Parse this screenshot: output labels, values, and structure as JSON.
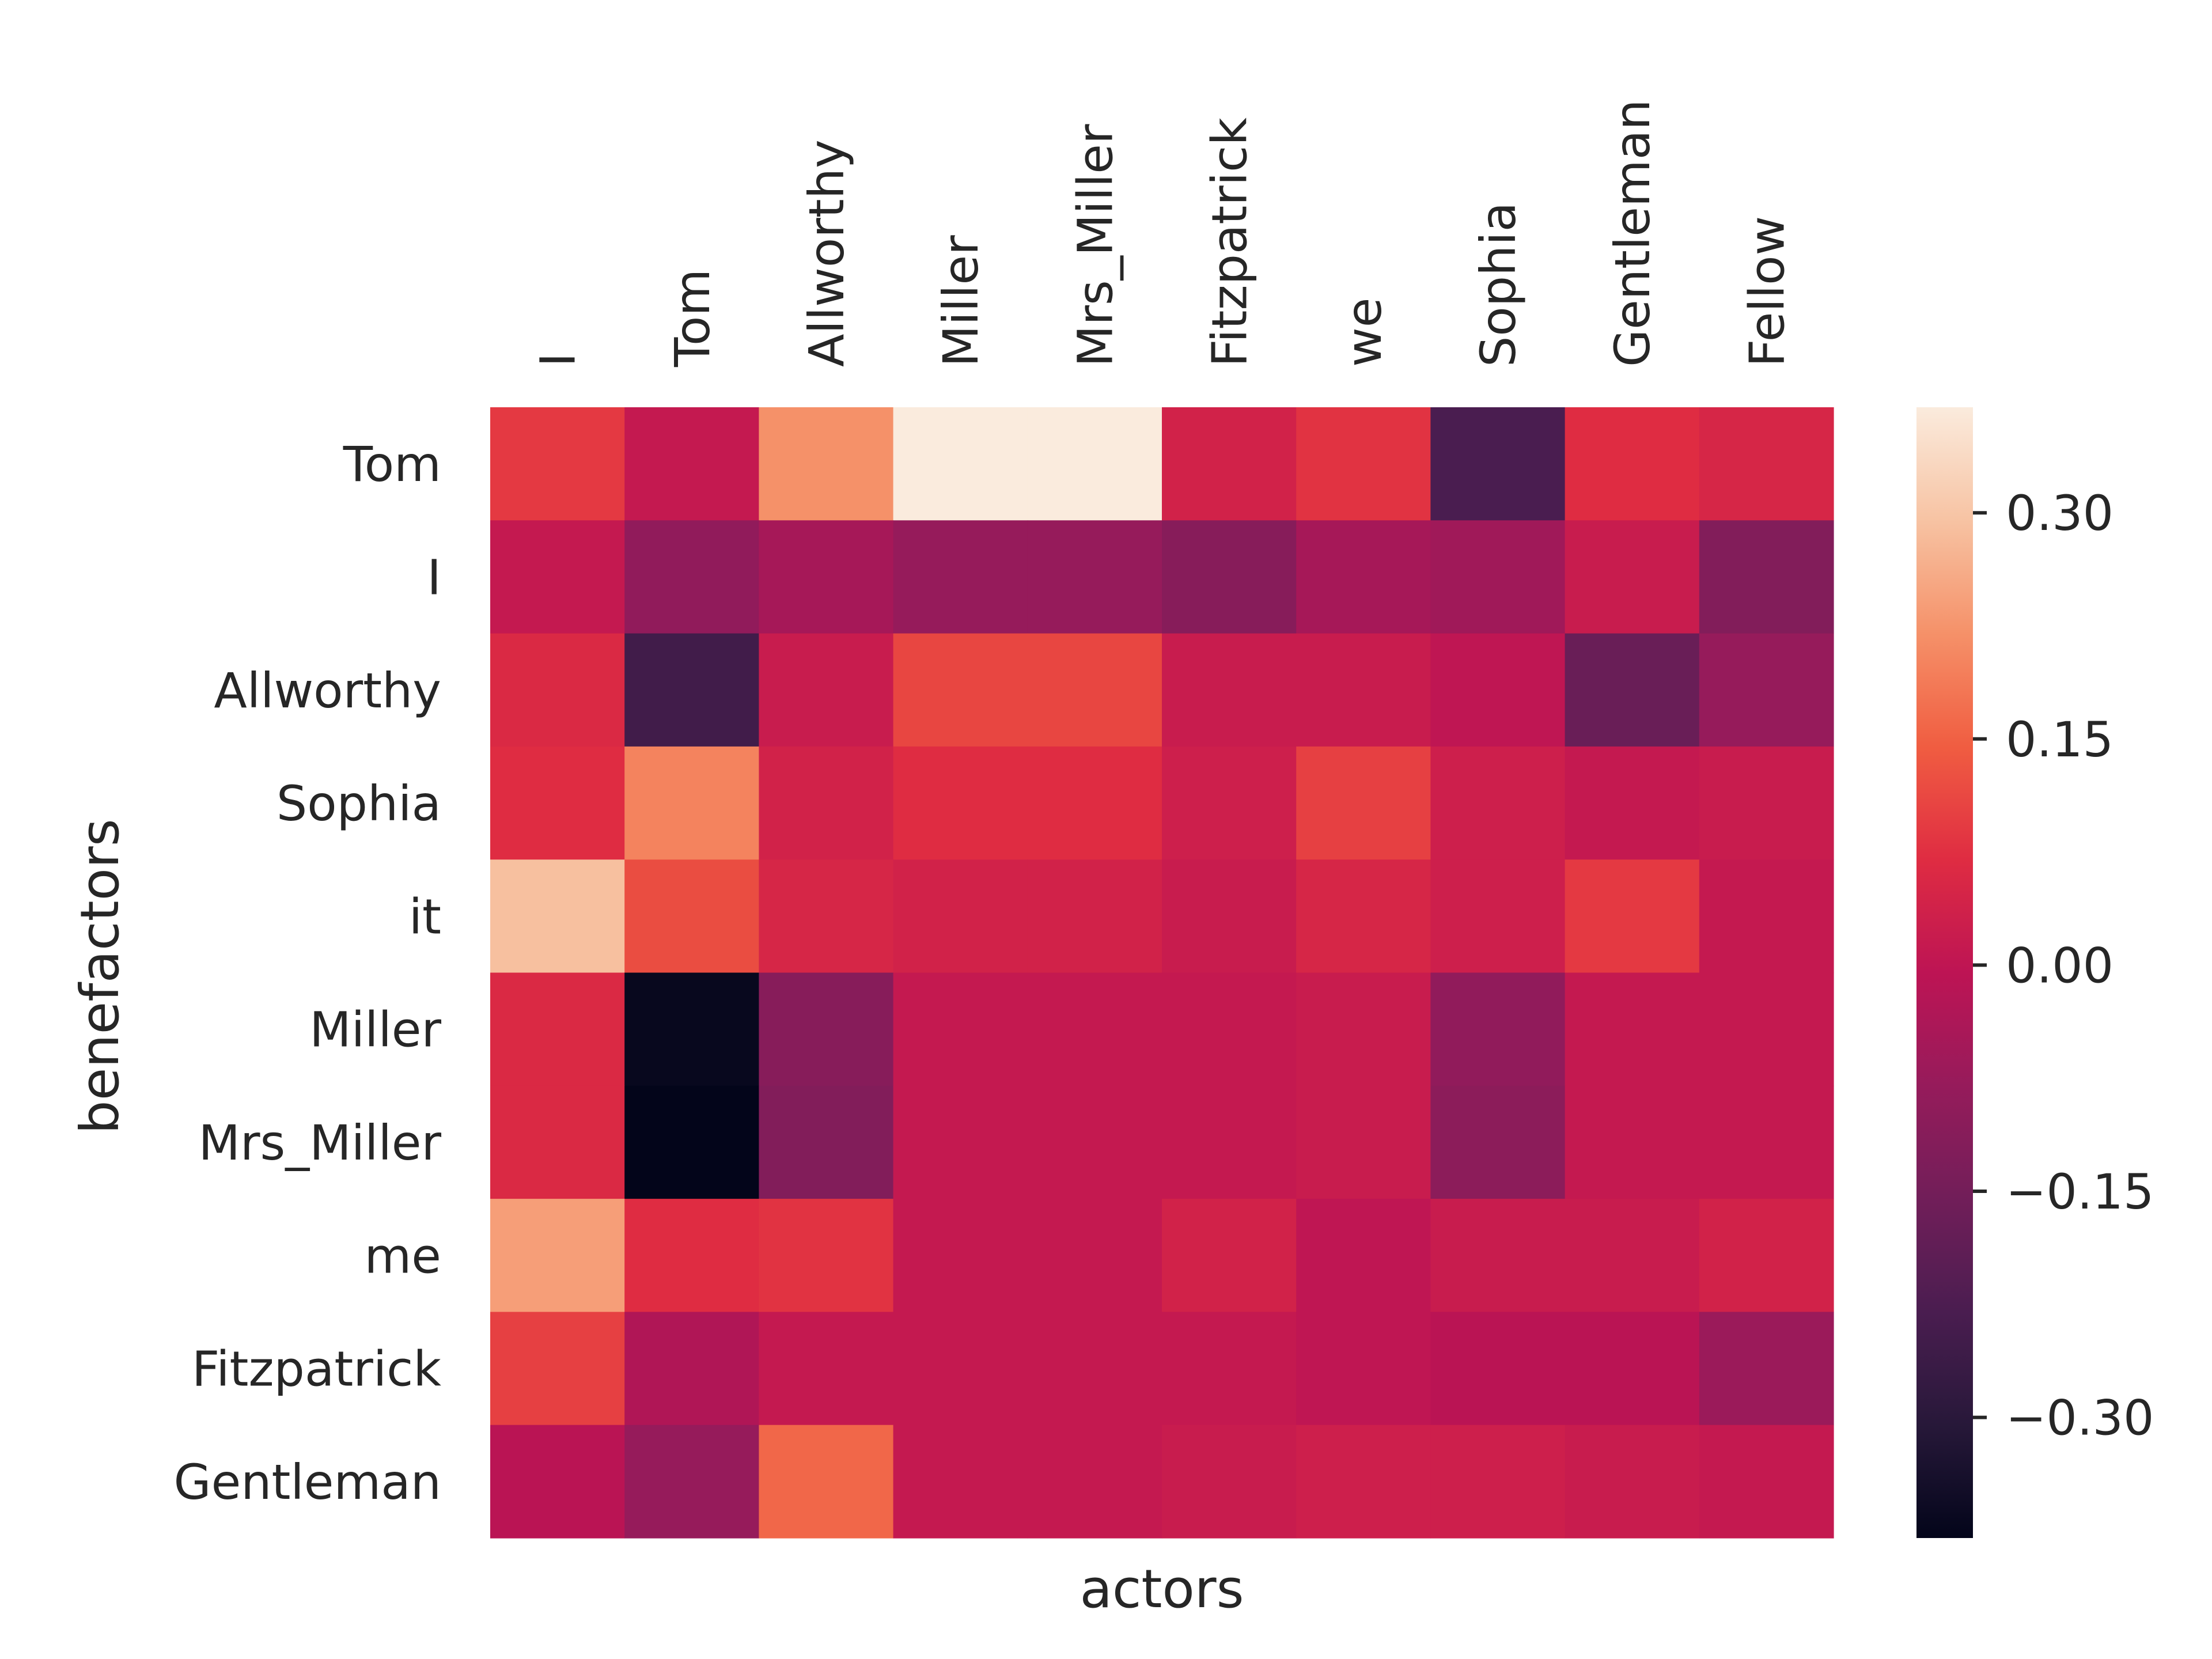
{
  "chart_data": {
    "type": "heatmap",
    "title": "",
    "xlabel": "actors",
    "ylabel": "benefactors",
    "x_categories": [
      "I",
      "Tom",
      "Allworthy",
      "Miller",
      "Mrs_Miller",
      "Fitzpatrick",
      "we",
      "Sophia",
      "Gentleman",
      "Fellow"
    ],
    "y_categories": [
      "Tom",
      "I",
      "Allworthy",
      "Sophia",
      "it",
      "Miller",
      "Mrs_Miller",
      "me",
      "Fitzpatrick",
      "Gentleman"
    ],
    "values": [
      [
        0.09,
        0.01,
        0.22,
        0.37,
        0.37,
        0.04,
        0.08,
        -0.23,
        0.07,
        0.05
      ],
      [
        0.01,
        -0.09,
        -0.05,
        -0.08,
        -0.08,
        -0.11,
        -0.05,
        -0.06,
        0.02,
        -0.12
      ],
      [
        0.06,
        -0.25,
        0.02,
        0.11,
        0.11,
        0.02,
        0.02,
        0.0,
        -0.17,
        -0.08
      ],
      [
        0.07,
        0.2,
        0.04,
        0.07,
        0.07,
        0.03,
        0.1,
        0.03,
        0.01,
        0.02
      ],
      [
        0.29,
        0.12,
        0.05,
        0.04,
        0.04,
        0.02,
        0.05,
        0.03,
        0.09,
        0.01
      ],
      [
        0.06,
        -0.37,
        -0.11,
        0.01,
        0.01,
        0.01,
        0.02,
        -0.09,
        0.01,
        0.01
      ],
      [
        0.06,
        -0.38,
        -0.12,
        0.01,
        0.01,
        0.01,
        0.02,
        -0.1,
        0.01,
        0.01
      ],
      [
        0.24,
        0.07,
        0.08,
        0.01,
        0.01,
        0.04,
        0.0,
        0.02,
        0.02,
        0.04
      ],
      [
        0.1,
        -0.03,
        0.01,
        0.01,
        0.01,
        0.01,
        0.0,
        -0.01,
        -0.01,
        -0.07
      ],
      [
        -0.01,
        -0.08,
        0.16,
        0.01,
        0.01,
        0.02,
        0.03,
        0.03,
        0.02,
        0.01
      ]
    ],
    "vmin": -0.38,
    "vmax": 0.37,
    "colormap": "rocket",
    "colorbar_ticks": [
      0.3,
      0.15,
      0.0,
      -0.15,
      -0.3
    ],
    "colorbar_tick_labels": [
      "0.30",
      "0.15",
      "0.00",
      "−0.15",
      "−0.30"
    ],
    "x_tick_position": "top",
    "grid": false
  }
}
